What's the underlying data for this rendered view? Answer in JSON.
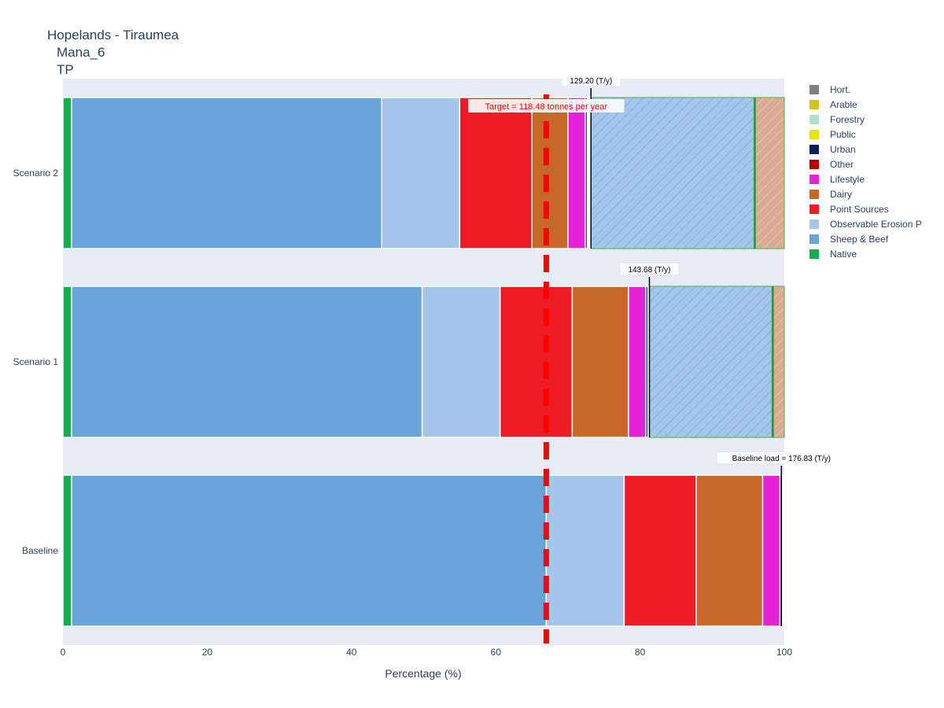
{
  "chart_data": {
    "type": "bar",
    "orientation": "horizontal",
    "barmode": "stack",
    "title_lines": [
      "Hopelands - Tiraumea",
      "Mana_6",
      "TP"
    ],
    "xlabel": "Percentage (%)",
    "ylabel": "",
    "xlim": [
      0,
      100
    ],
    "x_ticks": [
      "0",
      "20",
      "40",
      "60",
      "80",
      "100"
    ],
    "categories": [
      "Baseline",
      "Scenario 1",
      "Scenario 2"
    ],
    "series": [
      {
        "name": "Native",
        "color": "#11b04a",
        "values": [
          1.2,
          1.2,
          1.2
        ]
      },
      {
        "name": "Sheep & Beef",
        "color": "#68a4d8",
        "values": [
          65.8,
          48.6,
          43.0
        ]
      },
      {
        "name": "Observable Erosion P",
        "color": "#a4c6ea",
        "values": [
          10.8,
          10.8,
          10.8
        ]
      },
      {
        "name": "Point Sources",
        "color": "#ed1c24",
        "values": [
          10.0,
          10.0,
          10.0
        ]
      },
      {
        "name": "Dairy",
        "color": "#c66828",
        "values": [
          9.2,
          7.8,
          5.0
        ]
      },
      {
        "name": "Lifestyle",
        "color": "#e822d8",
        "values": [
          2.4,
          2.4,
          2.4
        ]
      },
      {
        "name": "Urban",
        "color": "#0b1f5a",
        "values": [
          0.3,
          0.3,
          0.3
        ]
      },
      {
        "name": "Other",
        "color": "#c00000",
        "values": [
          0.1,
          0.1,
          0.1
        ]
      },
      {
        "name": "Public",
        "color": "#e6e600",
        "values": [
          0.1,
          0.1,
          0.1
        ]
      },
      {
        "name": "Forestry",
        "color": "#ade3c0",
        "values": [
          0.1,
          0.1,
          0.1
        ]
      },
      {
        "name": "Arable",
        "color": "#d4c21a",
        "values": [
          0.1,
          0.1,
          0.1
        ]
      },
      {
        "name": "Hort.",
        "color": "#808080",
        "values": [
          0.1,
          0.1,
          0.1
        ]
      }
    ],
    "reductions": [
      {
        "category": "Scenario 1",
        "from": 81.3,
        "blue_to": 98.4,
        "to": 100
      },
      {
        "category": "Scenario 2",
        "from": 73.2,
        "blue_to": 95.9,
        "to": 100
      }
    ],
    "legend_order": [
      "Hort.",
      "Arable",
      "Forestry",
      "Public",
      "Urban",
      "Other",
      "Lifestyle",
      "Dairy",
      "Point Sources",
      "Observable Erosion P",
      "Sheep & Beef",
      "Native"
    ],
    "legend_placement": "right",
    "target": {
      "value": 67.0,
      "label": "Target = 118.48 tonnes per year",
      "color": "#ff0000"
    },
    "annotations": [
      {
        "category": "Baseline",
        "x": 99.6,
        "label": "Baseline load = 176.83 (T/y)"
      },
      {
        "category": "Scenario 1",
        "x": 81.3,
        "label": "143.68 (T/y)"
      },
      {
        "category": "Scenario 2",
        "x": 73.2,
        "label": "129.20 (T/y)"
      }
    ],
    "plot_bgcolor": "#e5ecf6",
    "grid": false
  }
}
